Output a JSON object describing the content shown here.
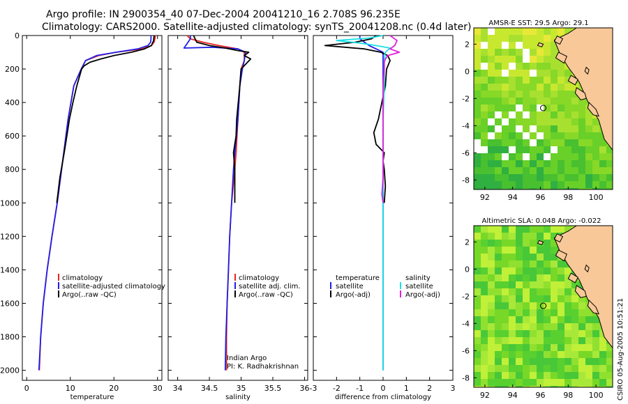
{
  "title_line1": "Argo profile: IN 2900354_40 07-Dec-2004 20041210_16 2.708S 96.235E",
  "title_line2": "Climatology: CARS2000. Satellite-adjusted climatology: synTS_20041208.nc (0.4d later)",
  "credit": "CSIRO 05-Aug-2005 10:51:21",
  "colors": {
    "climatology": "#e8231f",
    "satellite": "#1f1fe8",
    "argo": "#000000",
    "sat_sal": "#18e0e8",
    "argo_sal": "#e020d8",
    "land": "#f8c898",
    "no_data": "#ffffff",
    "marker": "#000000"
  },
  "chart_data": [
    {
      "type": "line",
      "xlabel": "temperature",
      "xlim": [
        -1,
        31
      ],
      "ylim": [
        2060,
        0
      ],
      "xticks": [
        0,
        10,
        20,
        30
      ],
      "yticks": [
        0,
        200,
        400,
        600,
        800,
        1000,
        1200,
        1400,
        1600,
        1800,
        2000
      ],
      "legend": [
        "climatology",
        "satellite-adjusted climatology",
        "Argo(..raw -QC)"
      ],
      "series": [
        {
          "name": "climatology",
          "color": "#e8231f",
          "x": [
            29.5,
            29.4,
            29.2,
            28.6,
            26.5,
            20.5,
            16.5,
            13.5,
            12.5,
            10.8,
            9.5,
            8.5,
            7.0,
            5.8,
            4.7,
            3.8,
            3.2,
            2.9
          ],
          "y": [
            0,
            20,
            40,
            60,
            80,
            100,
            120,
            150,
            200,
            300,
            500,
            700,
            1000,
            1200,
            1400,
            1600,
            1800,
            2000
          ]
        },
        {
          "name": "satellite-adjusted climatology",
          "color": "#1f1fe8",
          "x": [
            28.5,
            28.5,
            28.4,
            27.8,
            25.5,
            20.5,
            16.0,
            13.5,
            12.5,
            10.8,
            9.5,
            8.5,
            7.0,
            5.8,
            4.7,
            3.8,
            3.2,
            2.8
          ],
          "y": [
            0,
            20,
            40,
            60,
            80,
            100,
            120,
            150,
            200,
            300,
            500,
            700,
            1000,
            1200,
            1400,
            1600,
            1800,
            2000
          ]
        },
        {
          "name": "Argo(..raw -QC)",
          "color": "#000000",
          "x": [
            29.2,
            29.1,
            28.6,
            27.0,
            24.0,
            20.0,
            17.0,
            14.5,
            13.2,
            12.6,
            11.5,
            10.6,
            9.8,
            9.2,
            8.6,
            7.6,
            6.9
          ],
          "y": [
            0,
            30,
            60,
            80,
            100,
            120,
            140,
            160,
            180,
            200,
            300,
            400,
            500,
            600,
            700,
            850,
            1000
          ]
        }
      ]
    },
    {
      "type": "line",
      "xlabel": "salinity",
      "xlim": [
        33.85,
        36.05
      ],
      "ylim": [
        2060,
        0
      ],
      "xticks": [
        34,
        34.5,
        35,
        35.5,
        36
      ],
      "yticks": [
        0,
        200,
        400,
        600,
        800,
        1000,
        1200,
        1400,
        1600,
        1800,
        2000
      ],
      "legend": [
        "climatology",
        "satellite adj. clim.",
        "Argo(..raw -QC)"
      ],
      "annotation": [
        "Indian Argo",
        "PI: K. Radhakrishnan"
      ],
      "series": [
        {
          "name": "climatology",
          "color": "#e8231f",
          "x": [
            34.15,
            34.2,
            34.4,
            34.65,
            34.95,
            35.05,
            35.05,
            35.0,
            34.98,
            34.95,
            34.92,
            34.9,
            34.85,
            34.82,
            34.8,
            34.78,
            34.77,
            34.77
          ],
          "y": [
            0,
            20,
            40,
            60,
            80,
            100,
            150,
            200,
            300,
            500,
            700,
            800,
            1000,
            1200,
            1400,
            1600,
            1800,
            2000
          ]
        },
        {
          "name": "satellite adj. clim.",
          "color": "#1f1fe8",
          "x": [
            34.2,
            34.2,
            34.1,
            34.55,
            34.95,
            35.07,
            35.05,
            35.02,
            34.98,
            34.95,
            34.9,
            34.88,
            34.85,
            34.82,
            34.8,
            34.78,
            34.76,
            34.75
          ],
          "y": [
            0,
            20,
            75,
            70,
            80,
            100,
            150,
            200,
            300,
            500,
            700,
            800,
            1000,
            1200,
            1400,
            1600,
            1800,
            2000
          ]
        },
        {
          "name": "Argo(..raw -QC)",
          "color": "#000000",
          "x": [
            34.25,
            34.3,
            34.5,
            34.75,
            34.95,
            35.12,
            35.05,
            35.15,
            35.0,
            34.98,
            34.93,
            34.92,
            34.88,
            34.9,
            34.9
          ],
          "y": [
            0,
            40,
            60,
            75,
            90,
            100,
            120,
            140,
            200,
            300,
            500,
            600,
            700,
            800,
            1000
          ]
        }
      ]
    },
    {
      "type": "line",
      "xlabel": "difference from climatology",
      "xlim": [
        -3,
        3
      ],
      "ylim": [
        2060,
        0
      ],
      "xticks": [
        -3,
        -2,
        -1,
        0,
        1,
        2,
        3
      ],
      "yticks": [
        0,
        200,
        400,
        600,
        800,
        1000,
        1200,
        1400,
        1600,
        1800,
        2000
      ],
      "legend": [
        {
          "group": "temperature",
          "items": [
            "satellite",
            "Argo(-adj)"
          ]
        },
        {
          "group": "salinity",
          "items": [
            "satellite",
            "Argo(-adj)"
          ]
        }
      ],
      "series": [
        {
          "name": "temperature satellite",
          "color": "#1f1fe8",
          "x": [
            -1.0,
            -1.0,
            -0.8,
            -0.6,
            -0.3,
            0,
            0,
            0,
            0,
            0,
            0,
            0,
            0,
            0,
            0
          ],
          "y": [
            0,
            20,
            40,
            60,
            80,
            100,
            150,
            200,
            400,
            600,
            800,
            1000,
            1400,
            1800,
            2000
          ]
        },
        {
          "name": "temperature Argo(-adj)",
          "color": "#000000",
          "x": [
            -0.3,
            -0.5,
            -1.2,
            -2.5,
            -0.8,
            -0.1,
            0.2,
            0.3,
            0.15,
            0.1,
            -0.2,
            -0.4,
            -0.3,
            0.05,
            0,
            0.05,
            0.1,
            0.05
          ],
          "y": [
            0,
            20,
            40,
            60,
            80,
            100,
            120,
            150,
            200,
            300,
            500,
            580,
            650,
            700,
            750,
            800,
            900,
            1000
          ]
        },
        {
          "name": "salinity satellite",
          "color": "#18e0e8",
          "x": [
            0,
            -0.6,
            -2.0,
            -1.0,
            -0.3,
            0.3,
            0.1,
            0.05,
            0.05,
            0,
            0,
            0,
            0,
            0,
            0
          ],
          "y": [
            0,
            15,
            30,
            45,
            60,
            75,
            100,
            150,
            300,
            500,
            800,
            1000,
            1400,
            1800,
            2000
          ]
        },
        {
          "name": "salinity Argo(-adj)",
          "color": "#e020d8",
          "x": [
            0.3,
            0.6,
            0.5,
            0.3,
            0.7,
            0.2,
            0.1,
            0.05,
            0.05,
            0,
            0,
            0,
            0,
            -0.05,
            0
          ],
          "y": [
            0,
            30,
            60,
            80,
            100,
            120,
            140,
            160,
            200,
            300,
            500,
            700,
            850,
            950,
            1000
          ]
        }
      ]
    },
    {
      "type": "heatmap",
      "title": "AMSR-E SST: 29.5 Argo: 29.1",
      "xlim": [
        91.2,
        101.2
      ],
      "ylim": [
        -8.7,
        3.2
      ],
      "xticks": [
        92,
        94,
        96,
        98,
        100
      ],
      "yticks": [
        2,
        0,
        -2,
        -4,
        -6,
        -8
      ],
      "marker": {
        "x": 96.2,
        "y": -2.7
      }
    },
    {
      "type": "heatmap",
      "title": "Altimetric SLA: 0.048 Argo: -0.022",
      "xlim": [
        91.2,
        101.2
      ],
      "ylim": [
        -8.7,
        3.2
      ],
      "xticks": [
        92,
        94,
        96,
        98,
        100
      ],
      "yticks": [
        2,
        0,
        -2,
        -4,
        -6,
        -8
      ],
      "marker": {
        "x": 96.2,
        "y": -2.7
      }
    }
  ]
}
